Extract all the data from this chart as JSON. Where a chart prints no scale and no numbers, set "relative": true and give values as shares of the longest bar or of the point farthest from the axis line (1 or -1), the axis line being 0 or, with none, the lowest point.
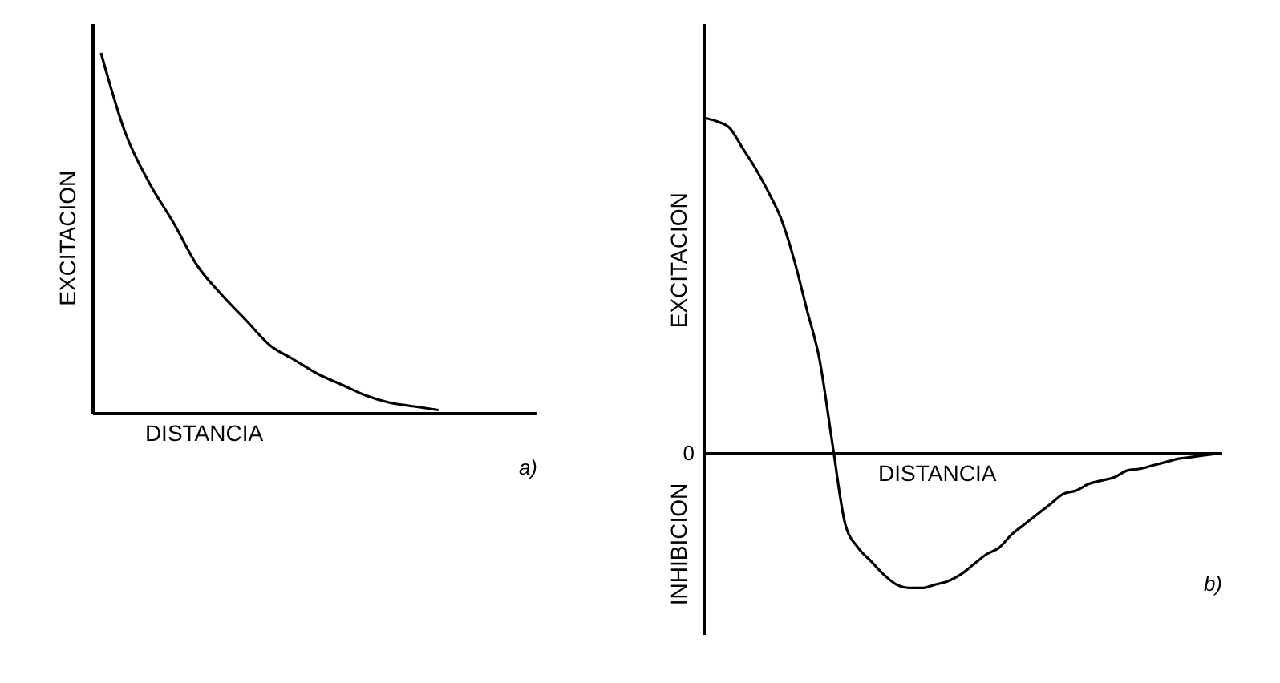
{
  "chart_data": [
    {
      "type": "line",
      "relative": true,
      "xlabel": "DISTANCIA",
      "ylabel": "EXCITACION",
      "categories": [
        null,
        null,
        null,
        null,
        null,
        null,
        null,
        null,
        null,
        null,
        null,
        null,
        null,
        null,
        null,
        null,
        null,
        null,
        null
      ],
      "series": [
        {
          "color": "#000000",
          "values": [
            1.0,
            0.78,
            0.64,
            0.53,
            0.41,
            0.33,
            0.26,
            0.19,
            0.15,
            0.11,
            0.08,
            0.05,
            0.03,
            0.02,
            0.01,
            null,
            null,
            null,
            null
          ]
        }
      ],
      "annotations": [
        "a)"
      ]
    },
    {
      "type": "line",
      "relative": true,
      "xlabel": "DISTANCIA",
      "ylabel": "EXCITACION",
      "categories": [
        null,
        null,
        null,
        null,
        null,
        null,
        null,
        null,
        null,
        null,
        null,
        null,
        null,
        null,
        null,
        null,
        null,
        null,
        null,
        null,
        null,
        null,
        null,
        null,
        null,
        null,
        null,
        null,
        null,
        null,
        null,
        null,
        null,
        null,
        null,
        null,
        null,
        null,
        null,
        null,
        null
      ],
      "series": [
        {
          "color": "#000000",
          "values": [
            1.0,
            0.99,
            0.97,
            0.91,
            0.85,
            0.78,
            0.7,
            0.58,
            0.43,
            0.28,
            0.03,
            -0.21,
            -0.28,
            -0.32,
            -0.36,
            -0.39,
            -0.4,
            -0.4,
            -0.39,
            -0.38,
            -0.36,
            -0.33,
            -0.3,
            -0.28,
            -0.24,
            -0.21,
            -0.18,
            -0.15,
            -0.12,
            -0.11,
            -0.09,
            -0.08,
            -0.07,
            -0.05,
            -0.045,
            -0.035,
            -0.025,
            -0.015,
            -0.01,
            -0.005,
            0
          ]
        }
      ],
      "annotations": [
        "0",
        "INHIBICION",
        "b)"
      ]
    }
  ]
}
